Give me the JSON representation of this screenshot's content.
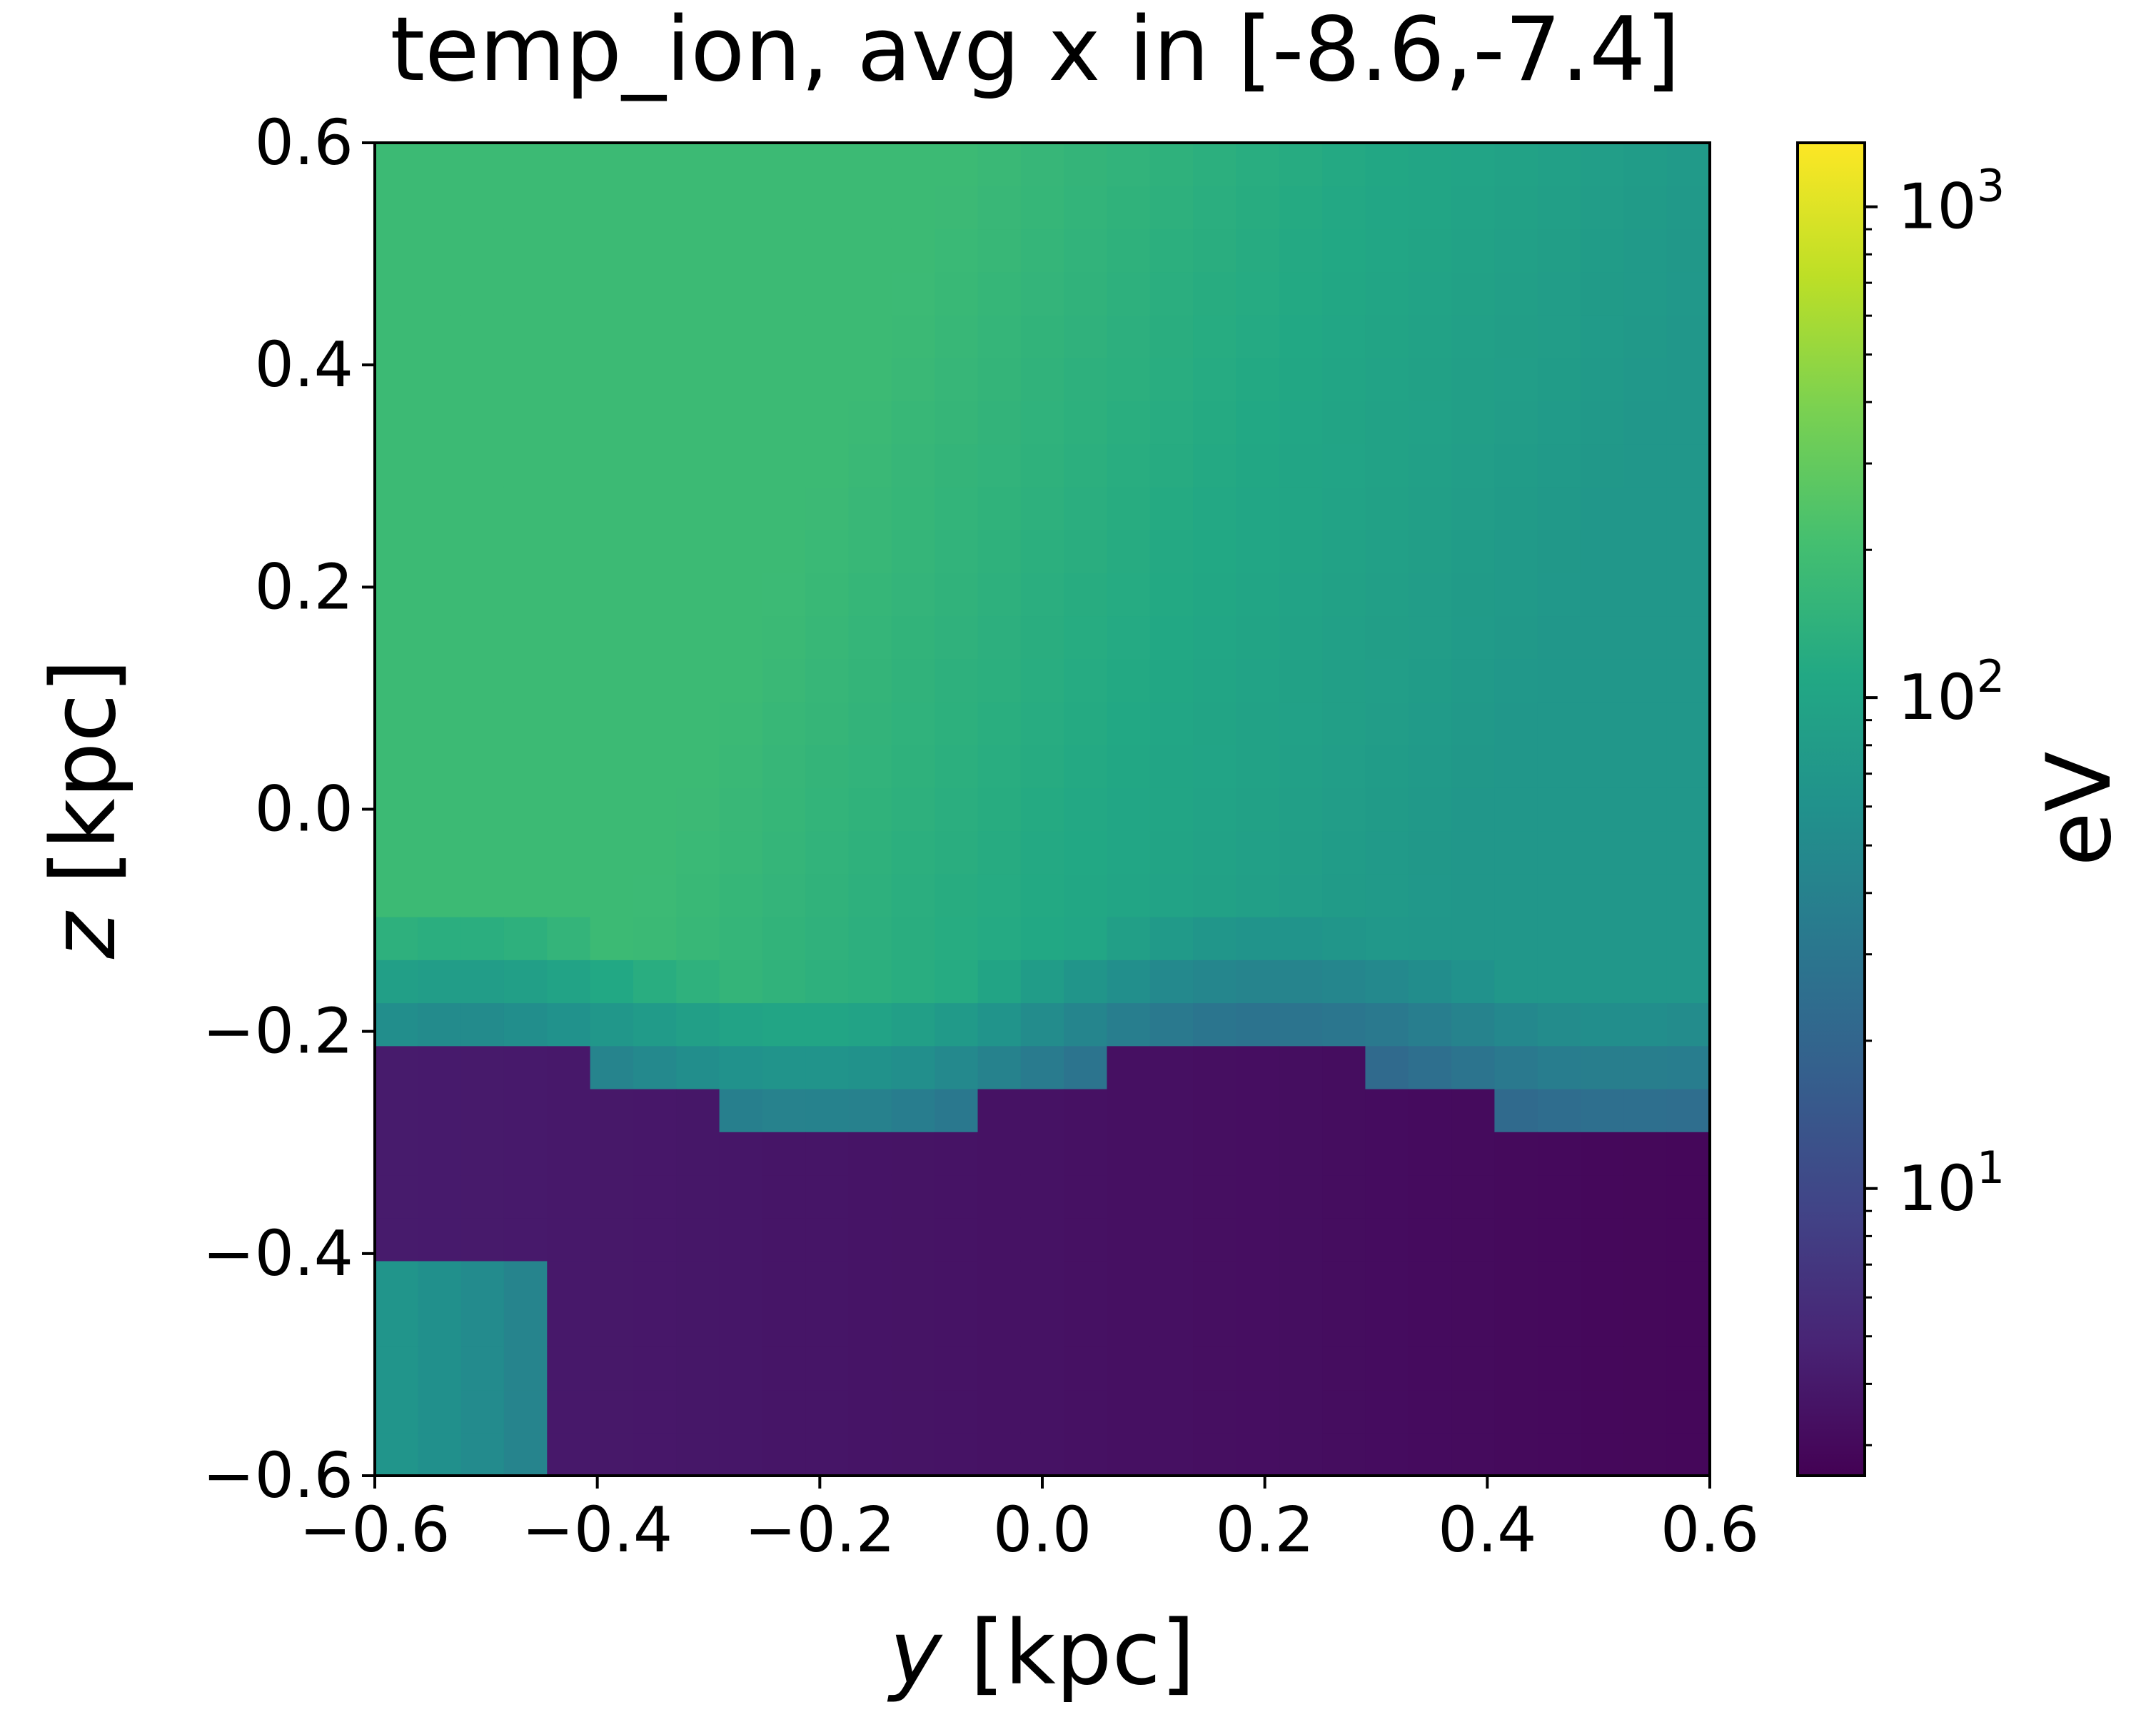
{
  "chart_data": {
    "type": "heatmap",
    "title": "temp_ion, avg x in [-8.6,-7.4]",
    "xlabel_var": "y",
    "xlabel_unit": " [kpc]",
    "ylabel_var": "z",
    "ylabel_unit": " [kpc]",
    "xlim": [
      -0.6,
      0.6
    ],
    "ylim": [
      -0.6,
      0.6
    ],
    "x_ticks": [
      -0.6,
      -0.4,
      -0.2,
      0.0,
      0.2,
      0.4,
      0.6
    ],
    "x_tick_labels": [
      "−0.6",
      "−0.4",
      "−0.2",
      "0.0",
      "0.2",
      "0.4",
      "0.6"
    ],
    "y_ticks": [
      -0.6,
      -0.4,
      -0.2,
      0.0,
      0.2,
      0.4,
      0.6
    ],
    "y_tick_labels": [
      "−0.6",
      "−0.4",
      "−0.2",
      "0.0",
      "0.2",
      "0.4",
      "0.6"
    ],
    "colorbar": {
      "label": "eV",
      "scale": "log",
      "colormap": "viridis",
      "min": 2.6,
      "max": 1350,
      "ticks": [
        10,
        100,
        1000
      ],
      "tick_base": "10",
      "tick_exponents": [
        "1",
        "2",
        "3"
      ]
    },
    "grid": false,
    "grid_shape": {
      "cols": 31,
      "rows": 31
    },
    "approx_structure": {
      "hot_upper_left_eV": 180,
      "upper_right_eV": 70,
      "cold_lower_region_eV": 3.5,
      "transition_z_kpc": -0.2
    }
  }
}
